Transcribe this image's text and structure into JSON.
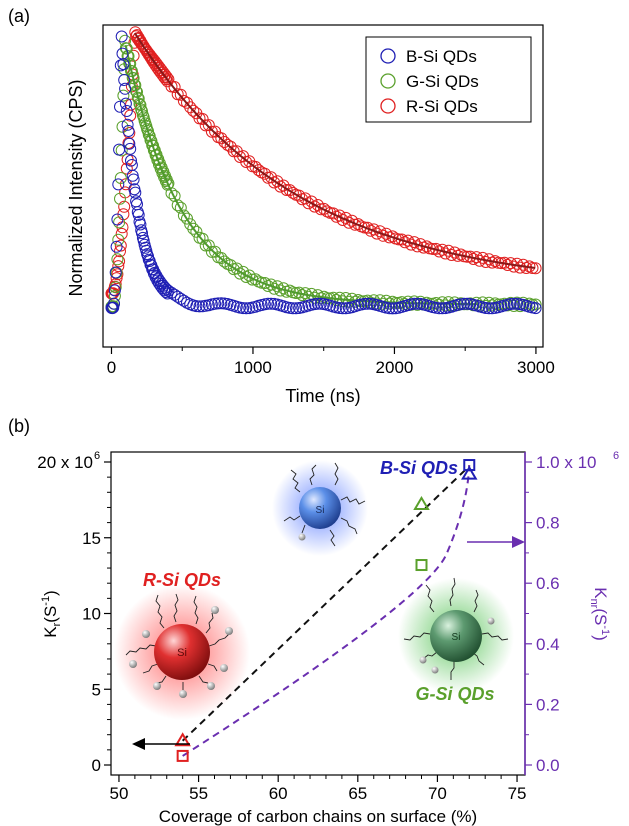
{
  "chart_data": [
    {
      "panel": "(a)",
      "type": "scatter",
      "xlabel": "Time (ns)",
      "ylabel": "Normalized Intensity (CPS)",
      "xlim": [
        -60,
        3050
      ],
      "xticks": [
        "0",
        "1000",
        "2000",
        "3000"
      ],
      "yticks_labeled": false,
      "legend_position": "top-right",
      "colors": {
        "B-Si QDs": "#1f1fb4",
        "G-Si QDs": "#5aa02c",
        "R-Si QDs": "#e02020",
        "fit_green": "#4f9a2e",
        "fit_red": "#8a1818"
      },
      "series": [
        {
          "name": "B-Si QDs",
          "marker": "open-circle",
          "t0": 15,
          "peak_t": 70,
          "peak": 1.0,
          "baseline": 0.065,
          "decay_tau_ns": 110,
          "end_t": 3000
        },
        {
          "name": "G-Si QDs",
          "marker": "open-circle",
          "t0": 15,
          "peak_t": 95,
          "peak": 0.97,
          "baseline": 0.07,
          "decay_tau_ns": 390,
          "end_t": 3000,
          "fit_line": true
        },
        {
          "name": "R-Si QDs",
          "marker": "open-circle",
          "t0": 15,
          "peak_t": 165,
          "peak": 1.0,
          "baseline": 0.12,
          "decay_tau_ns": 1150,
          "end_t": 3000,
          "fit_line": true
        }
      ]
    },
    {
      "panel": "(b)",
      "type": "scatter",
      "xlabel": "Coverage of carbon chains on surface (%)",
      "ylabel_left": "K",
      "ylabel_left_sub": "r",
      "ylabel_left_unit": "(S",
      "ylabel_left_unit_sup": "-1",
      "ylabel_right": "K",
      "ylabel_right_sub": "nr",
      "ylabel_right_unit": "(S",
      "ylabel_right_unit_sup": "-1",
      "xlim": [
        49.5,
        75.5
      ],
      "xticks": [
        "50",
        "55",
        "60",
        "65",
        "70",
        "75"
      ],
      "ylim_left": [
        0,
        20.6
      ],
      "yticks_left": [
        "0",
        "5",
        "10",
        "15",
        "20 x 10"
      ],
      "yticks_left_exp": "6",
      "ylim_right": [
        0,
        1.03
      ],
      "yticks_right": [
        "0.0",
        "0.2",
        "0.4",
        "0.6",
        "0.8",
        "1.0 x 10"
      ],
      "yticks_right_exp": "6",
      "series": [
        {
          "name": "Kr",
          "marker": "open-triangle",
          "axis": "left",
          "points": [
            {
              "x": 54,
              "y": 1600000.0,
              "color": "#e02020"
            },
            {
              "x": 69,
              "y": 17200000.0,
              "color": "#5aa02c"
            },
            {
              "x": 72,
              "y": 19200000.0,
              "color": "#1f1fb4"
            }
          ],
          "line": "dashed",
          "line_color": "#111111"
        },
        {
          "name": "Knr",
          "marker": "open-square",
          "axis": "right",
          "points": [
            {
              "x": 54,
              "y": 30000.0,
              "color": "#e02020"
            },
            {
              "x": 69,
              "y": 660000.0,
              "color": "#5aa02c"
            },
            {
              "x": 72,
              "y": 990000.0,
              "color": "#1f1fb4"
            }
          ],
          "line": "dashed",
          "line_color": "#6a2fb0"
        }
      ],
      "annotations": {
        "r": "R-Si QDs",
        "g": "G-Si QDs",
        "b": "B-Si QDs",
        "si": "Si"
      }
    }
  ]
}
